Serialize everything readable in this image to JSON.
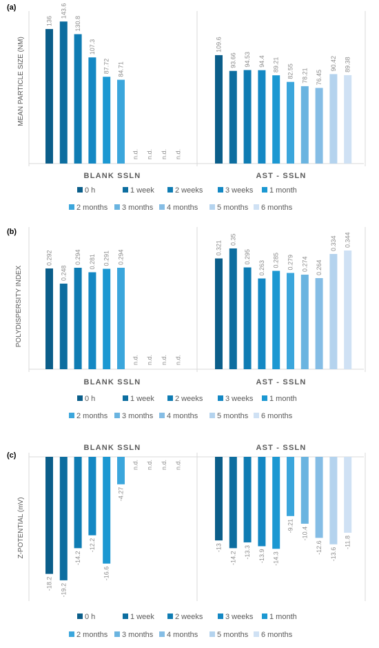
{
  "colors": {
    "series": [
      "#0b5e8a",
      "#0d6ea0",
      "#0f7cb3",
      "#1488c4",
      "#1c98d2",
      "#3ba6dc",
      "#6ab4e0",
      "#85bde5",
      "#b4d3ee",
      "#cfe1f4"
    ],
    "axis": "#d9d9d9",
    "text": "#595959",
    "na_text": "#8c8c8c"
  },
  "legend": [
    "0 h",
    "1 week",
    "2 weeks",
    "3 weeks",
    "1 month",
    "2 months",
    "3 months",
    "4 months",
    "5 months",
    "6 months"
  ],
  "chart_data": [
    {
      "type": "bar",
      "panel_label": "(a)",
      "title": "",
      "ylabel": "MEAN PARTICLE SIZE (NM)",
      "categories": [
        "BLANK SSLN",
        "AST - SSLN"
      ],
      "series": [
        {
          "name": "0 h",
          "values": [
            136,
            109.6
          ],
          "labels": [
            "136",
            "109.6"
          ]
        },
        {
          "name": "1 week",
          "values": [
            143.6,
            93.66
          ],
          "labels": [
            "143.6",
            "93.66"
          ]
        },
        {
          "name": "2 weeks",
          "values": [
            130.8,
            94.53
          ],
          "labels": [
            "130.8",
            "94.53"
          ]
        },
        {
          "name": "3 weeks",
          "values": [
            107.3,
            94.4
          ],
          "labels": [
            "107.3",
            "94.4"
          ]
        },
        {
          "name": "1 month",
          "values": [
            87.72,
            89.21
          ],
          "labels": [
            "87.72",
            "89.21"
          ]
        },
        {
          "name": "2 months",
          "values": [
            84.71,
            82.55
          ],
          "labels": [
            "84.71",
            "82.55"
          ]
        },
        {
          "name": "3 months",
          "values": [
            null,
            78.21
          ],
          "labels": [
            "n.d.",
            "78.21"
          ]
        },
        {
          "name": "4 months",
          "values": [
            null,
            76.45
          ],
          "labels": [
            "n.d.",
            "76.45"
          ]
        },
        {
          "name": "5 months",
          "values": [
            null,
            90.42
          ],
          "labels": [
            "n.d.",
            "90.42"
          ]
        },
        {
          "name": "6 months",
          "values": [
            null,
            89.38
          ],
          "labels": [
            "n.d.",
            "89.38"
          ]
        }
      ],
      "ylim": [
        0,
        150
      ],
      "grid": false,
      "category_labels_position": "bottom",
      "legend_position": "bottom"
    },
    {
      "type": "bar",
      "panel_label": "(b)",
      "title": "",
      "ylabel": "POLYDISPERSITY INDEX",
      "categories": [
        "BLANK SSLN",
        "AST - SSLN"
      ],
      "series": [
        {
          "name": "0 h",
          "values": [
            0.292,
            0.321
          ],
          "labels": [
            "0.292",
            "0.321"
          ]
        },
        {
          "name": "1 week",
          "values": [
            0.248,
            0.35
          ],
          "labels": [
            "0.248",
            "0.35"
          ]
        },
        {
          "name": "2 weeks",
          "values": [
            0.294,
            0.295
          ],
          "labels": [
            "0.294",
            "0.295"
          ]
        },
        {
          "name": "3 weeks",
          "values": [
            0.281,
            0.263
          ],
          "labels": [
            "0.281",
            "0.263"
          ]
        },
        {
          "name": "1 month",
          "values": [
            0.291,
            0.285
          ],
          "labels": [
            "0.291",
            "0.285"
          ]
        },
        {
          "name": "2 months",
          "values": [
            0.294,
            0.279
          ],
          "labels": [
            "0.294",
            "0.279"
          ]
        },
        {
          "name": "3 months",
          "values": [
            null,
            0.274
          ],
          "labels": [
            "n.d.",
            "0.274"
          ]
        },
        {
          "name": "4 months",
          "values": [
            null,
            0.264
          ],
          "labels": [
            "n.d.",
            "0.264"
          ]
        },
        {
          "name": "5 months",
          "values": [
            null,
            0.334
          ],
          "labels": [
            "n.d.",
            "0.334"
          ]
        },
        {
          "name": "6 months",
          "values": [
            null,
            0.344
          ],
          "labels": [
            "n.d.",
            "0.344"
          ]
        }
      ],
      "ylim": [
        0,
        0.4
      ],
      "grid": false,
      "category_labels_position": "bottom",
      "legend_position": "bottom"
    },
    {
      "type": "bar",
      "panel_label": "(c)",
      "title": "",
      "ylabel": "Z-POTENTIAL (mV)",
      "categories": [
        "BLANK SSLN",
        "AST - SSLN"
      ],
      "series": [
        {
          "name": "0 h",
          "values": [
            -18.2,
            -13
          ],
          "labels": [
            "-18.2",
            "-13"
          ]
        },
        {
          "name": "1 week",
          "values": [
            -19.2,
            -14.2
          ],
          "labels": [
            "-19.2",
            "-14.2"
          ]
        },
        {
          "name": "2 weeks",
          "values": [
            -14.2,
            -13.3
          ],
          "labels": [
            "-14.2",
            "-13.3"
          ]
        },
        {
          "name": "3 weeks",
          "values": [
            -12.2,
            -13.9
          ],
          "labels": [
            "-12.2",
            "-13.9"
          ]
        },
        {
          "name": "1 month",
          "values": [
            -16.6,
            -14.3
          ],
          "labels": [
            "-16.6",
            "-14.3"
          ]
        },
        {
          "name": "2 months",
          "values": [
            -4.27,
            -9.21
          ],
          "labels": [
            "-4.27",
            "-9.21"
          ]
        },
        {
          "name": "3 months",
          "values": [
            null,
            -10.4
          ],
          "labels": [
            "n.d.",
            "-10.4"
          ]
        },
        {
          "name": "4 months",
          "values": [
            null,
            -12.6
          ],
          "labels": [
            "n.d.",
            "-12.6"
          ]
        },
        {
          "name": "5 months",
          "values": [
            null,
            -13.6
          ],
          "labels": [
            "n.d.",
            "-13.6"
          ]
        },
        {
          "name": "6 months",
          "values": [
            null,
            -11.8
          ],
          "labels": [
            "n.d.",
            "-11.8"
          ]
        }
      ],
      "ylim": [
        -22,
        0
      ],
      "grid": false,
      "category_labels_position": "top",
      "legend_position": "bottom"
    }
  ]
}
